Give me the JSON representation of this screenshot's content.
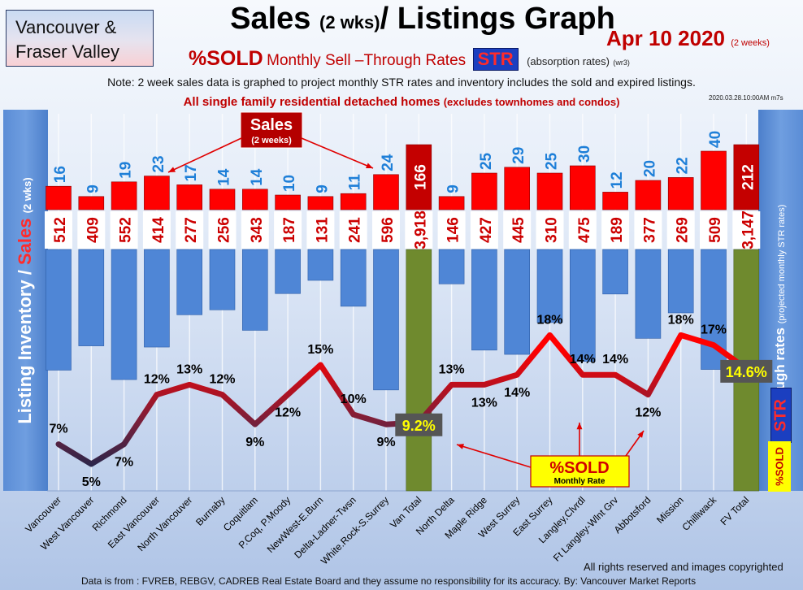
{
  "region": {
    "line1": "Vancouver &",
    "line2": "Fraser Valley"
  },
  "title": {
    "main": "Sales",
    "small": "(2 wks)",
    "rest": "/ Listings Graph"
  },
  "date": {
    "main": "Apr 10 2020",
    "small": "(2 weeks)"
  },
  "subtitle": {
    "pct": "%SOLD",
    "text": "Monthly Sell –Through Rates",
    "str": "STR",
    "abs_rates": "(absorption rates)",
    "version": "(wr3)"
  },
  "note": "Note: 2 week sales data is graphed to project monthly STR rates and inventory includes the sold and expired listings.",
  "subnote": {
    "main": "All single family residential detached homes",
    "small": "(excludes townhomes and condos)"
  },
  "timestamp": "2020.03.28.10:00AM m7s",
  "left_axis": {
    "a": "Listing Inventory /",
    "b": "Sales",
    "c": "(2 wks)"
  },
  "right_axis": {
    "a": "Sell-through rates",
    "b": "(projected monthly STR rates)"
  },
  "tags": {
    "str": "STR",
    "sold": "%SOLD"
  },
  "annotations": {
    "sales_box": {
      "line1": "Sales",
      "line2": "(2 weeks)"
    },
    "sold_box": {
      "line1": "%SOLD",
      "line2": "Monthly Rate"
    }
  },
  "colors": {
    "sales_bar": "#ff0000",
    "inventory_bar": "#4f86d6",
    "total_bar": "#6f8a2e",
    "total_sales_bar": "#c40000",
    "line_low": "#14284f",
    "line_high": "#ff0000"
  },
  "chart_data": {
    "type": "bar",
    "categories": [
      "Vancouver",
      "West Vancouver",
      "Richmond",
      "East Vancouver",
      "North Vancouver",
      "Burnaby",
      "Coquitlam",
      "P.Coq, P.Moody",
      "NewWest-E.Burn",
      "Delta-Ladner-Twsn",
      "White.Rock-S.Surrey",
      "Van Total",
      "North Delta",
      "Maple Ridge",
      "West Surrey",
      "East Surrey",
      "Langley,Clvrdl",
      "Ft Langley-Wlnt Grv",
      "Abbotsford",
      "Mission",
      "Chilliwack",
      "FV Total"
    ],
    "series": [
      {
        "name": "Sales",
        "values": [
          16,
          9,
          19,
          23,
          17,
          14,
          14,
          10,
          9,
          11,
          24,
          166,
          9,
          25,
          29,
          25,
          30,
          12,
          20,
          22,
          40,
          212
        ],
        "labels": [
          "16",
          "9",
          "19",
          "23",
          "17",
          "14",
          "14",
          "10",
          "9",
          "11",
          "24",
          "166",
          "9",
          "25",
          "29",
          "25",
          "30",
          "12",
          "20",
          "22",
          "40",
          "212"
        ]
      },
      {
        "name": "Listing Inventory",
        "values": [
          512,
          409,
          552,
          414,
          277,
          256,
          343,
          187,
          131,
          241,
          596,
          3918,
          146,
          427,
          445,
          310,
          475,
          189,
          377,
          269,
          509,
          3147
        ],
        "labels": [
          "512",
          "409",
          "552",
          "414",
          "277",
          "256",
          "343",
          "187",
          "131",
          "241",
          "596",
          "3,918",
          "146",
          "427",
          "445",
          "310",
          "475",
          "189",
          "377",
          "269",
          "509",
          "3,147"
        ]
      },
      {
        "name": "%SOLD",
        "values": [
          7,
          5,
          7,
          12,
          13,
          12,
          9,
          12,
          15,
          10,
          9,
          9.2,
          13,
          13,
          14,
          18,
          14,
          14,
          12,
          18,
          17,
          14.6
        ],
        "labels": [
          "7%",
          "5%",
          "7%",
          "12%",
          "13%",
          "12%",
          "9%",
          "12%",
          "15%",
          "10%",
          "9%",
          "9.2%",
          "13%",
          "13%",
          "14%",
          "18%",
          "14%",
          "14%",
          "12%",
          "18%",
          "17%",
          "14.6%"
        ]
      }
    ],
    "totals_index": [
      11,
      21
    ]
  },
  "copyright": "All rights reserved and  images copyrighted",
  "footer": "Data is from : FVREB, REBGV, CADREB Real Estate Board and they assume no responsibility for its accuracy. By: Vancouver Market Reports"
}
